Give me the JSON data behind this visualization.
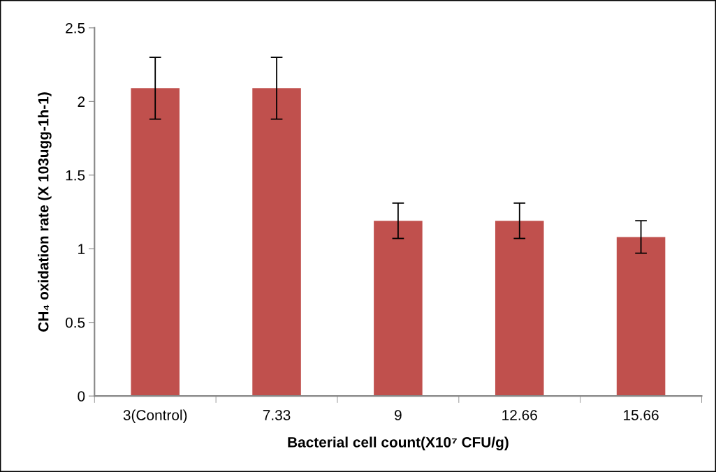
{
  "chart_data": {
    "type": "bar",
    "xlabel": "Bacterial cell count(X10⁷ CFU/g)",
    "ylabel": "CH₄ oxidation rate (X 103ugg-1h-1)",
    "categories": [
      "3(Control)",
      "7.33",
      "9",
      "12.66",
      "15.66"
    ],
    "values": [
      2.09,
      2.09,
      1.19,
      1.19,
      1.08
    ],
    "errors": [
      0.21,
      0.21,
      0.12,
      0.12,
      0.11
    ],
    "color": "#c0504d",
    "ylim": [
      0,
      2.5
    ],
    "yticks": [
      0,
      0.5,
      1,
      1.5,
      2,
      2.5
    ],
    "grid": false,
    "legend": false
  }
}
